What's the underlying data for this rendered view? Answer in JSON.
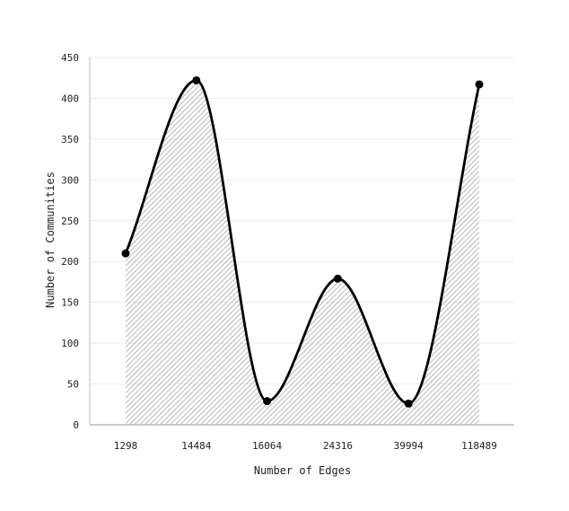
{
  "chart_data": {
    "type": "area",
    "title": "",
    "xlabel": "Number of Edges",
    "ylabel": "Number of Communities",
    "categories": [
      "1298",
      "14484",
      "16064",
      "24316",
      "39994",
      "118489"
    ],
    "values": [
      210,
      422,
      29,
      179,
      26,
      417
    ],
    "ylim": [
      0,
      450
    ],
    "yticks": [
      0,
      50,
      100,
      150,
      200,
      250,
      300,
      350,
      400,
      450
    ],
    "grid": true,
    "legend": "none",
    "curve": "smooth",
    "fill_pattern": "diagonal-hatch",
    "colors": {
      "line": "#000000",
      "hatch": "#9a9a9a",
      "grid": "#ececec",
      "axis": "#bbbbbb"
    }
  }
}
